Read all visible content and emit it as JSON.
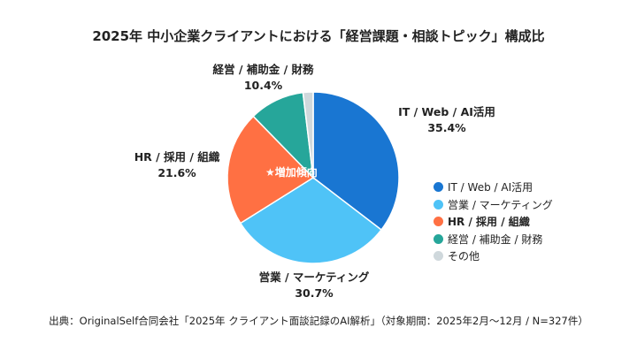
{
  "chart_data": {
    "type": "pie",
    "title": "2025年 中小企業クライアントにおける「経営課題・相談トピック」構成比",
    "categories": [
      "IT / Web / AI活用",
      "営業 / マーケティング",
      "HR / 採用 / 組織",
      "経営 / 補助金 / 財務",
      "その他"
    ],
    "values": [
      35.4,
      30.7,
      21.6,
      10.4,
      1.9
    ],
    "data_labels": [
      "35.4%",
      "30.7%",
      "21.6%",
      "10.4%",
      ""
    ],
    "colors": [
      "#1976D2",
      "#4FC3F7",
      "#FF7043",
      "#26A69A",
      "#CFD8DC"
    ],
    "start_angle": "top, clockwise",
    "legend_position": "right",
    "highlighted_category": "HR / 採用 / 組織",
    "annotation": "★増加傾向",
    "source": "出典：OriginalSelf合同会社「2025年 クライアント面談記録のAI解析」（対象期間：2025年2月〜12月 / N=327件）"
  }
}
